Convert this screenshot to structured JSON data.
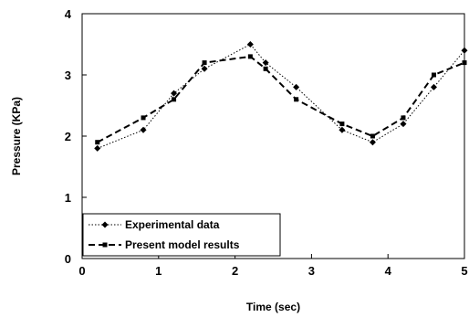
{
  "chart_data": {
    "type": "line",
    "title": "",
    "xlabel": "Time  (sec)",
    "ylabel": "Pressure  (KPa)",
    "xlim": [
      0,
      5
    ],
    "ylim": [
      0,
      4
    ],
    "xticks": [
      "0",
      "1",
      "2",
      "3",
      "4",
      "5"
    ],
    "yticks": [
      "0",
      "1",
      "2",
      "3",
      "4"
    ],
    "grid": false,
    "legend_position": "bottom-left",
    "series": [
      {
        "name": "Experimental data",
        "style": "dotted",
        "marker": "diamond",
        "x": [
          0.2,
          0.8,
          1.2,
          1.6,
          2.2,
          2.4,
          2.8,
          3.4,
          3.8,
          4.2,
          4.6,
          5.0
        ],
        "y": [
          1.8,
          2.1,
          2.7,
          3.1,
          3.5,
          3.2,
          2.8,
          2.1,
          1.9,
          2.2,
          2.8,
          3.4
        ]
      },
      {
        "name": "Present model results",
        "style": "dashed",
        "marker": "square",
        "x": [
          0.2,
          0.8,
          1.2,
          1.6,
          2.2,
          2.4,
          2.8,
          3.4,
          3.8,
          4.2,
          4.6,
          5.0
        ],
        "y": [
          1.9,
          2.3,
          2.6,
          3.2,
          3.3,
          3.1,
          2.6,
          2.2,
          2.0,
          2.3,
          3.0,
          3.2
        ]
      }
    ]
  }
}
